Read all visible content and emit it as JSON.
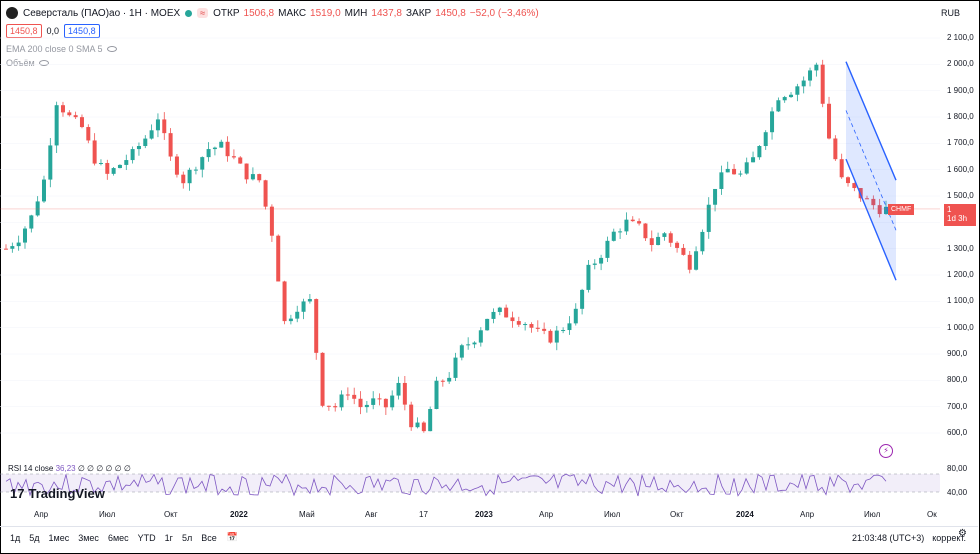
{
  "header": {
    "symbol": "Северсталь (ПАО)ао · 1Н · MOEX",
    "wave_icon": "≈",
    "open_label": "ОТКР",
    "open_value": "1506,8",
    "high_label": "МАКС",
    "high_value": "1519,0",
    "low_label": "МИН",
    "low_value": "1437,8",
    "close_label": "ЗАКР",
    "close_value": "1450,8",
    "change": "−52,0 (−3,46%)",
    "currency": "RUB"
  },
  "prices": {
    "bid": "1450,8",
    "spread": "0,0",
    "ask": "1450,8"
  },
  "indicators": {
    "ema": "EMA 200 close 0 SMA 5",
    "volume": "Объём"
  },
  "y_axis": [
    "2 100,0",
    "2 000,0",
    "1 900,0",
    "1 800,0",
    "1 700,0",
    "1 600,0",
    "1 500,0",
    "1 400,0",
    "1 300,0",
    "1 200,0",
    "1 100,0",
    "1 000,0",
    "900,0",
    "800,0",
    "700,0",
    "600,0"
  ],
  "rsi_axis": [
    "80,00",
    "40,00"
  ],
  "price_tag": {
    "symbol": "CHMF",
    "price": "1 450,8",
    "countdown": "1d 3h"
  },
  "rsi": {
    "label": "RSI 14 close",
    "value": "36,23",
    "extra": "∅ ∅ ∅ ∅ ∅ ∅"
  },
  "logo": {
    "mark": "17",
    "name": "TradingView"
  },
  "x_axis": [
    {
      "t": "Апр",
      "bold": false
    },
    {
      "t": "Июл",
      "bold": false
    },
    {
      "t": "Окт",
      "bold": false
    },
    {
      "t": "2022",
      "bold": true
    },
    {
      "t": "Май",
      "bold": false
    },
    {
      "t": "Авг",
      "bold": false
    },
    {
      "t": "17",
      "bold": false
    },
    {
      "t": "2023",
      "bold": true
    },
    {
      "t": "Апр",
      "bold": false
    },
    {
      "t": "Июл",
      "bold": false
    },
    {
      "t": "Окт",
      "bold": false
    },
    {
      "t": "2024",
      "bold": true
    },
    {
      "t": "Апр",
      "bold": false
    },
    {
      "t": "Июл",
      "bold": false
    },
    {
      "t": "Ок",
      "bold": false
    }
  ],
  "bottom": {
    "ranges": [
      "1д",
      "5д",
      "1мес",
      "3мес",
      "6мес",
      "YTD",
      "1г",
      "5л",
      "Все"
    ],
    "time": "21:03:48 (UTC+3)",
    "adjust": "коррект."
  },
  "colors": {
    "up": "#26a69a",
    "down": "#ef5350",
    "channel": "#2962ff",
    "rsi": "#7e57c2"
  },
  "chart_data": {
    "type": "candlestick",
    "title": "Северсталь (ПАО)ао · 1Н · MOEX",
    "ylim": [
      550,
      2150
    ],
    "close_path": [
      1300,
      1340,
      1420,
      1560,
      1860,
      1800,
      1760,
      1640,
      1580,
      1620,
      1660,
      1720,
      1800,
      1640,
      1560,
      1620,
      1680,
      1690,
      1640,
      1580,
      1560,
      1360,
      1020,
      1080,
      1100,
      720,
      700,
      760,
      700,
      720,
      700,
      780,
      640,
      600,
      780,
      820,
      920,
      960,
      1040,
      1060,
      1040,
      1020,
      980,
      960,
      1000,
      1060,
      1220,
      1280,
      1360,
      1400,
      1380,
      1320,
      1360,
      1300,
      1240,
      1380,
      1540,
      1600,
      1580,
      1640,
      1760,
      1880,
      1900,
      1940,
      2000,
      1720,
      1560,
      1520,
      1480,
      1450.8
    ],
    "channel": {
      "upper": [
        2010,
        1560
      ],
      "lower": [
        1640,
        1180
      ],
      "mid": [
        1825,
        1370
      ]
    }
  }
}
